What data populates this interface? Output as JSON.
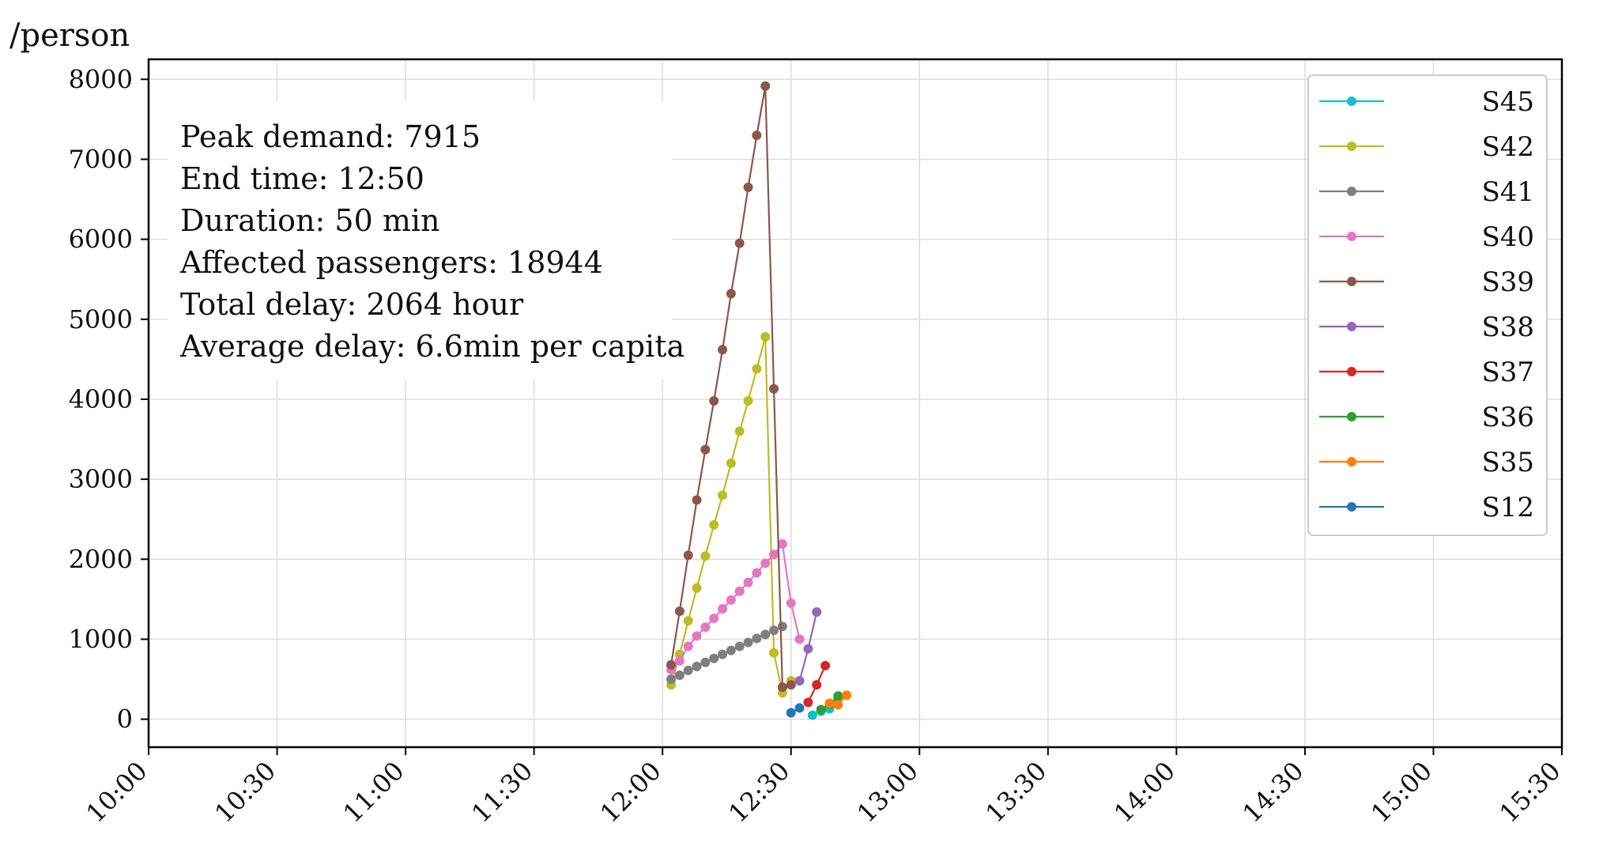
{
  "chart_data": {
    "type": "line",
    "ylabel": "/person",
    "ylim": [
      -350,
      8250
    ],
    "xlim_minutes": [
      600,
      930
    ],
    "x_ticks": [
      "10:00",
      "10:30",
      "11:00",
      "11:30",
      "12:00",
      "12:30",
      "13:00",
      "13:30",
      "14:00",
      "14:30",
      "15:00",
      "15:30"
    ],
    "y_ticks": [
      0,
      1000,
      2000,
      3000,
      4000,
      5000,
      6000,
      7000,
      8000
    ],
    "grid": true,
    "legend_position": "top-right",
    "annotations": [
      "Peak demand: 7915",
      "End time: 12:50",
      "Duration: 50 min",
      "Affected passengers: 18944",
      "Total delay: 2064 hour",
      "Average delay: 6.6min per capita"
    ],
    "series": [
      {
        "name": "S45",
        "color": "#17becf",
        "x": [
          "12:35",
          "12:37",
          "12:39",
          "12:41"
        ],
        "y": [
          50,
          100,
          130,
          280
        ]
      },
      {
        "name": "S42",
        "color": "#bcbd22",
        "x": [
          "12:02",
          "12:04",
          "12:06",
          "12:08",
          "12:10",
          "12:12",
          "12:14",
          "12:16",
          "12:18",
          "12:20",
          "12:22",
          "12:24",
          "12:26",
          "12:28",
          "12:30",
          "12:32",
          "12:34",
          "12:36"
        ],
        "y": [
          430,
          810,
          1230,
          1640,
          2040,
          2430,
          2800,
          3200,
          3600,
          3980,
          4380,
          4780,
          830,
          330,
          480,
          null,
          null,
          null
        ]
      },
      {
        "name": "S41",
        "color": "#7f7f7f",
        "x": [
          "12:02",
          "12:04",
          "12:06",
          "12:08",
          "12:10",
          "12:12",
          "12:14",
          "12:16",
          "12:18",
          "12:20",
          "12:22",
          "12:24",
          "12:26",
          "12:28"
        ],
        "y": [
          500,
          550,
          610,
          660,
          710,
          760,
          810,
          860,
          910,
          960,
          1010,
          1060,
          1110,
          1160
        ]
      },
      {
        "name": "S40",
        "color": "#e377c2",
        "x": [
          "12:02",
          "12:04",
          "12:06",
          "12:08",
          "12:10",
          "12:12",
          "12:14",
          "12:16",
          "12:18",
          "12:20",
          "12:22",
          "12:24",
          "12:26",
          "12:28",
          "12:30",
          "12:32"
        ],
        "y": [
          620,
          730,
          910,
          1040,
          1150,
          1260,
          1380,
          1490,
          1600,
          1710,
          1830,
          1950,
          2060,
          2190,
          1450,
          1000
        ]
      },
      {
        "name": "S39",
        "color": "#8c564b",
        "x": [
          "12:02",
          "12:04",
          "12:06",
          "12:08",
          "12:10",
          "12:12",
          "12:14",
          "12:16",
          "12:18",
          "12:20",
          "12:22",
          "12:24",
          "12:26",
          "12:28",
          "12:30",
          "12:32"
        ],
        "y": [
          680,
          1350,
          2050,
          2740,
          3370,
          3980,
          4620,
          5320,
          5950,
          6650,
          7300,
          7915,
          4130,
          400,
          430,
          null
        ]
      },
      {
        "name": "S38",
        "color": "#9467bd",
        "x": [
          "12:32",
          "12:34",
          "12:36"
        ],
        "y": [
          480,
          880,
          1340
        ]
      },
      {
        "name": "S37",
        "color": "#d62728",
        "x": [
          "12:34",
          "12:36",
          "12:38"
        ],
        "y": [
          210,
          430,
          670
        ]
      },
      {
        "name": "S36",
        "color": "#2ca02c",
        "x": [
          "12:37",
          "12:39",
          "12:41"
        ],
        "y": [
          120,
          190,
          290
        ]
      },
      {
        "name": "S35",
        "color": "#ff7f0e",
        "x": [
          "12:39",
          "12:41",
          "12:43"
        ],
        "y": [
          200,
          180,
          300
        ]
      },
      {
        "name": "S12",
        "color": "#1f77b4",
        "x": [
          "12:30",
          "12:32"
        ],
        "y": [
          80,
          140
        ]
      }
    ]
  }
}
